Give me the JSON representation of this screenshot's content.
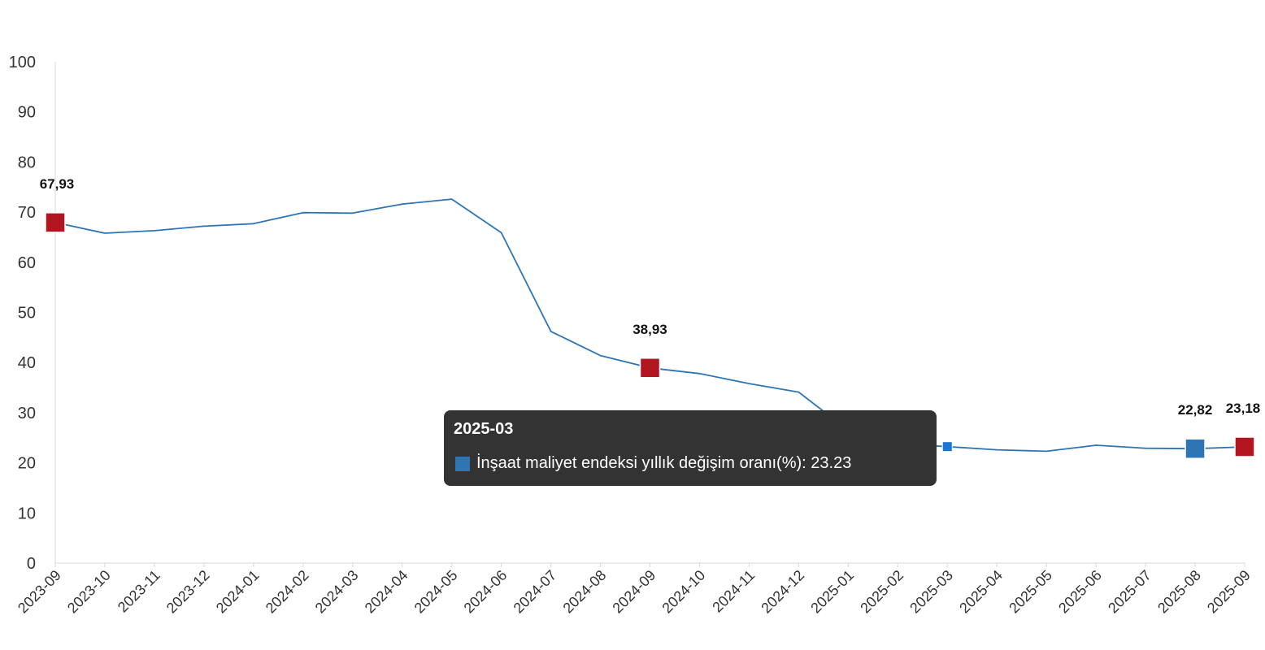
{
  "chart_data": {
    "type": "line",
    "categories": [
      "2023-09",
      "2023-10",
      "2023-11",
      "2023-12",
      "2024-01",
      "2024-02",
      "2024-03",
      "2024-04",
      "2024-05",
      "2024-06",
      "2024-07",
      "2024-08",
      "2024-09",
      "2024-10",
      "2024-11",
      "2024-12",
      "2025-01",
      "2025-02",
      "2025-03",
      "2025-04",
      "2025-05",
      "2025-06",
      "2025-07",
      "2025-08",
      "2025-09"
    ],
    "series": [
      {
        "name": "İnşaat maliyet endeksi yıllık değişim oranı(%)",
        "values": [
          67.93,
          65.8,
          66.3,
          67.2,
          67.7,
          69.9,
          69.8,
          71.6,
          72.6,
          65.9,
          46.2,
          41.4,
          38.93,
          37.8,
          35.8,
          34.1,
          26.5,
          23.8,
          23.23,
          22.6,
          22.3,
          23.5,
          22.9,
          22.82,
          23.18
        ],
        "color": "#2e75b6"
      }
    ],
    "ylim": [
      0,
      100
    ],
    "yticks": [
      0,
      10,
      20,
      30,
      40,
      50,
      60,
      70,
      80,
      90,
      100
    ],
    "grid": false,
    "highlight_color": "#b01520",
    "annotations": [
      {
        "category": "2023-09",
        "label": "67,93",
        "marker": "red"
      },
      {
        "category": "2024-09",
        "label": "38,93",
        "marker": "red"
      },
      {
        "category": "2025-08",
        "label": "22,82",
        "marker": "blue"
      },
      {
        "category": "2025-09",
        "label": "23,18",
        "marker": "red"
      }
    ],
    "active_point": "2025-03"
  },
  "tooltip": {
    "title": "2025-03",
    "series_name": "İnşaat maliyet endeksi yıllık değişim oranı(%)",
    "value": "23.23",
    "swatch_color": "#2e75b6"
  }
}
